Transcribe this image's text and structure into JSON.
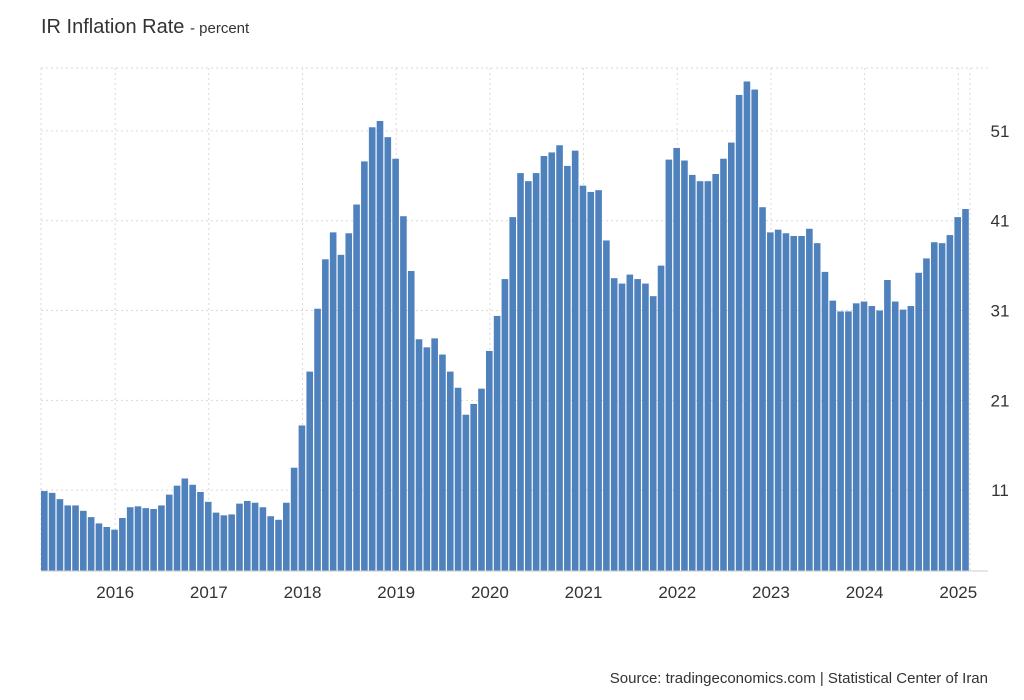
{
  "header": {
    "title": "IR Inflation Rate",
    "unit": "- percent"
  },
  "footer": {
    "source": "Source: tradingeconomics.com | Statistical Center of Iran"
  },
  "colors": {
    "bar": "#4f81bd",
    "grid": "#d9d9d9",
    "axis": "#cccccc",
    "text": "#333333"
  },
  "chart_data": {
    "type": "bar",
    "title": "IR Inflation Rate",
    "unit": "percent",
    "ylim": [
      2,
      58
    ],
    "y_ticks": [
      11,
      21,
      31,
      41,
      51
    ],
    "y_axis_side": "right",
    "grid": true,
    "x_tick_labels": [
      "2016",
      "2017",
      "2018",
      "2019",
      "2020",
      "2021",
      "2022",
      "2023",
      "2024",
      "2025"
    ],
    "x_start": "2015-09",
    "x_frequency": "monthly",
    "series": [
      {
        "values": [
          10.9,
          10.7,
          10.0,
          9.3,
          9.3,
          8.7,
          8.0,
          7.3,
          6.9,
          6.6,
          7.9,
          9.1,
          9.2,
          9.0,
          8.9,
          9.3,
          10.5,
          11.5,
          12.3,
          11.6,
          10.8,
          9.7,
          8.5,
          8.2,
          8.3,
          9.5,
          9.8,
          9.6,
          9.1,
          8.1,
          7.7,
          9.6,
          13.5,
          18.2,
          24.2,
          31.2,
          36.7,
          39.7,
          37.2,
          39.6,
          42.8,
          47.6,
          51.4,
          52.1,
          50.3,
          47.9,
          41.5,
          35.4,
          27.8,
          26.9,
          27.9,
          26.1,
          24.2,
          22.4,
          19.4,
          20.6,
          22.3,
          26.5,
          30.4,
          34.5,
          41.4,
          46.3,
          45.4,
          46.3,
          48.2,
          48.6,
          49.4,
          47.1,
          48.8,
          44.9,
          44.2,
          44.4,
          38.8,
          34.6,
          34.0,
          35.0,
          34.5,
          34.0,
          32.6,
          36.0,
          47.8,
          49.1,
          47.7,
          46.1,
          45.4,
          45.4,
          46.2,
          47.9,
          49.7,
          55.0,
          56.5,
          55.6,
          42.5,
          39.7,
          40.0,
          39.6,
          39.3,
          39.3,
          40.1,
          38.5,
          35.3,
          32.1,
          30.9,
          30.9,
          31.8,
          32.0,
          31.5,
          31.0,
          34.4,
          32.0,
          31.1,
          31.5,
          35.2,
          36.8,
          38.6,
          38.5,
          39.4,
          41.4,
          42.3
        ]
      }
    ]
  }
}
